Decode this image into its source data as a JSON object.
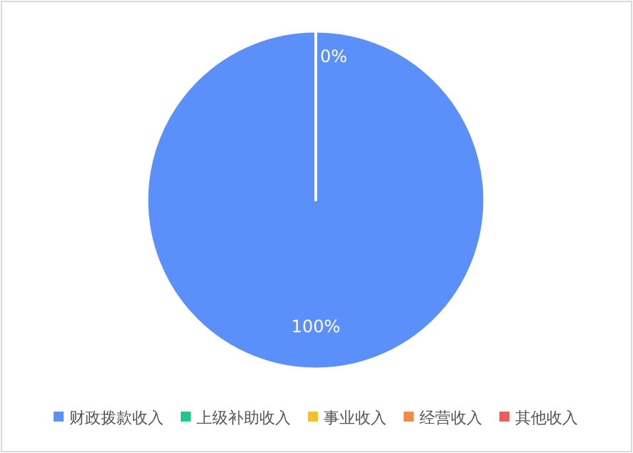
{
  "chart_data": {
    "type": "pie",
    "categories": [
      "财政拨款收入",
      "上级补助收入",
      "事业收入",
      "经营收入",
      "其他收入"
    ],
    "values": [
      100,
      0,
      0,
      0,
      0
    ],
    "colors": [
      "#5b8ff9",
      "#1ec88a",
      "#f6c022",
      "#f98a45",
      "#ee5c5c"
    ],
    "value_labels": [
      "100%",
      "0%",
      null,
      null,
      null
    ],
    "legend": "bottom"
  }
}
